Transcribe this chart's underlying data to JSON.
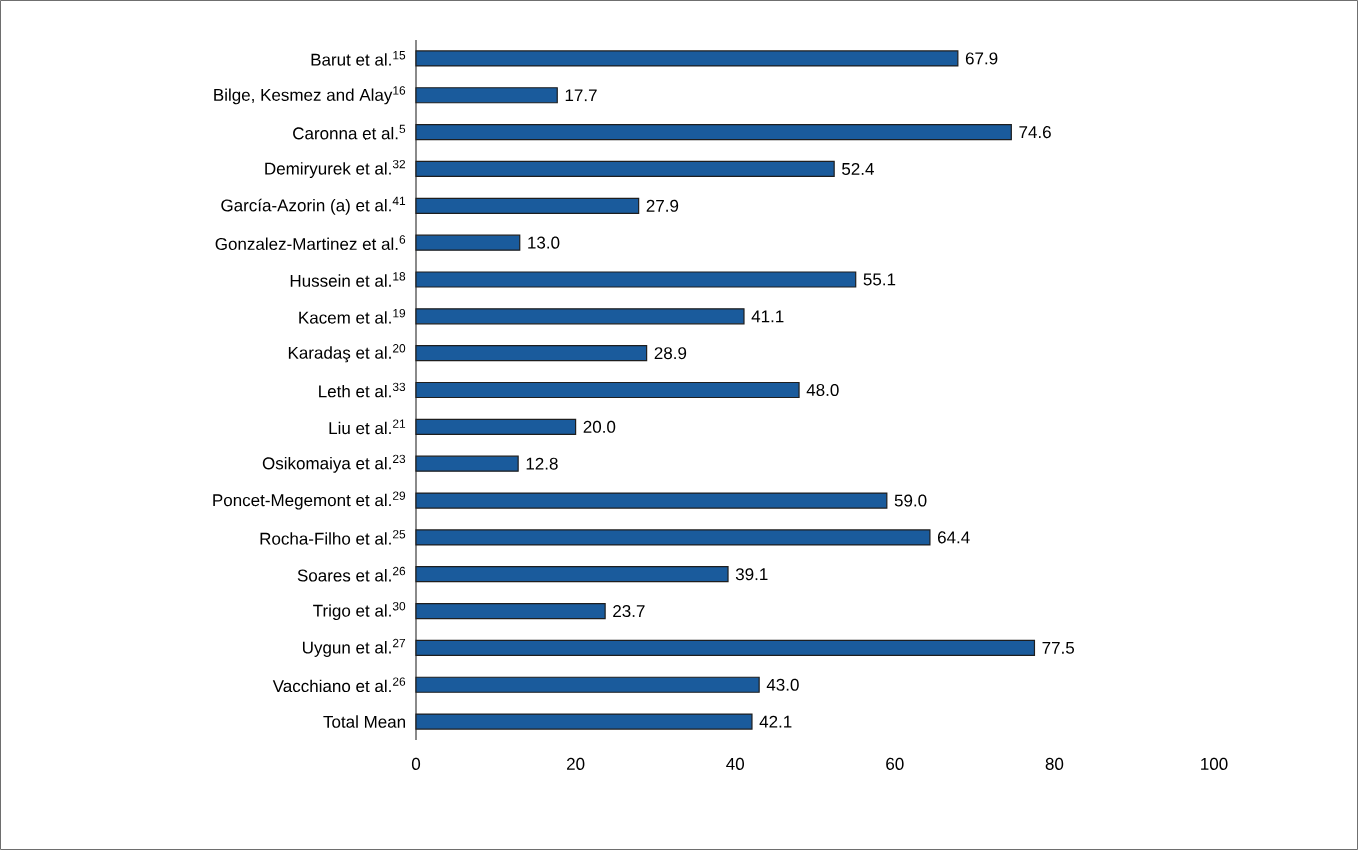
{
  "chart_data": {
    "type": "bar",
    "orientation": "horizontal",
    "categories": [
      "Barut et al.$^{15}$",
      "Bilge, Kesmez and Alay$^{16}$",
      "Caronna et al.$^{5}$",
      "Demiryurek et al.$^{32}$",
      "García-Azorin (a) et al.$^{41}$",
      "Gonzalez-Martinez et al.$^{6}$",
      "Hussein et al.$^{18}$",
      "Kacem et al.$^{19}$",
      "Karadaş et al.$^{20}$",
      "Leth et al.$^{33}$",
      "Liu et al.$^{21}$",
      "Osikomaiya et al.$^{23}$",
      "Poncet-Megemont et al.$^{29}$",
      "Rocha-Filho et al.$^{25}$",
      "Soares et al.$^{26}$",
      "Trigo et al.$^{30}$",
      "Uygun et al.$^{27}$",
      "Vacchiano et al.$^{26}$",
      "Total Mean"
    ],
    "values": [
      67.9,
      17.7,
      74.6,
      52.4,
      27.9,
      13.0,
      55.1,
      41.1,
      28.9,
      48.0,
      20.0,
      12.8,
      59.0,
      64.4,
      39.1,
      23.7,
      77.5,
      43.0,
      42.1
    ],
    "value_labels": [
      "67.9",
      "17.7",
      "74.6",
      "52.4",
      "27.9",
      "13.0",
      "55.1",
      "41.1",
      "28.9",
      "48.0",
      "20.0",
      "12.8",
      "59.0",
      "64.4",
      "39.1",
      "23.7",
      "77.5",
      "43.0",
      "42.1"
    ],
    "color": "#1a5b9c",
    "xlim": [
      0,
      100
    ],
    "xticks": [
      0,
      20,
      40,
      60,
      80,
      100
    ],
    "grid": false
  }
}
